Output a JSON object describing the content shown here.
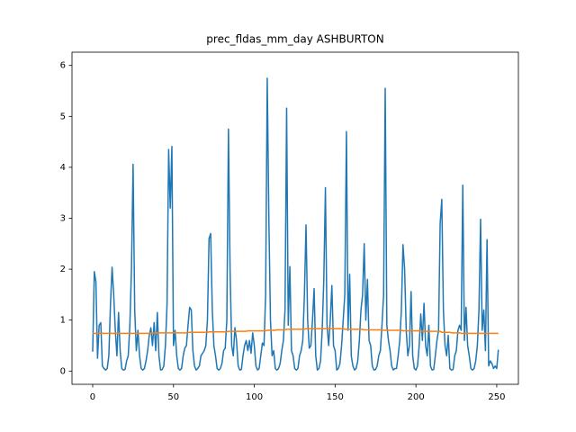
{
  "chart_data": {
    "type": "line",
    "title": "prec_fldas_mm_day ASHBURTON",
    "x": [
      0,
      1,
      2,
      3,
      4,
      5,
      6,
      7,
      8,
      9,
      10,
      11,
      12,
      13,
      14,
      15,
      16,
      17,
      18,
      19,
      20,
      21,
      22,
      23,
      24,
      25,
      26,
      27,
      28,
      29,
      30,
      31,
      32,
      33,
      34,
      35,
      36,
      37,
      38,
      39,
      40,
      41,
      42,
      43,
      44,
      45,
      46,
      47,
      48,
      49,
      50,
      51,
      52,
      53,
      54,
      55,
      56,
      57,
      58,
      59,
      60,
      61,
      62,
      63,
      64,
      65,
      66,
      67,
      68,
      69,
      70,
      71,
      72,
      73,
      74,
      75,
      76,
      77,
      78,
      79,
      80,
      81,
      82,
      83,
      84,
      85,
      86,
      87,
      88,
      89,
      90,
      91,
      92,
      93,
      94,
      95,
      96,
      97,
      98,
      99,
      100,
      101,
      102,
      103,
      104,
      105,
      106,
      107,
      108,
      109,
      110,
      111,
      112,
      113,
      114,
      115,
      116,
      117,
      118,
      119,
      120,
      121,
      122,
      123,
      124,
      125,
      126,
      127,
      128,
      129,
      130,
      131,
      132,
      133,
      134,
      135,
      136,
      137,
      138,
      139,
      140,
      141,
      142,
      143,
      144,
      145,
      146,
      147,
      148,
      149,
      150,
      151,
      152,
      153,
      154,
      155,
      156,
      157,
      158,
      159,
      160,
      161,
      162,
      163,
      164,
      165,
      166,
      167,
      168,
      169,
      170,
      171,
      172,
      173,
      174,
      175,
      176,
      177,
      178,
      179,
      180,
      181,
      182,
      183,
      184,
      185,
      186,
      187,
      188,
      189,
      190,
      191,
      192,
      193,
      194,
      195,
      196,
      197,
      198,
      199,
      200,
      201,
      202,
      203,
      204,
      205,
      206,
      207,
      208,
      209,
      210,
      211,
      212,
      213,
      214,
      215,
      216,
      217,
      218,
      219,
      220,
      221,
      222,
      223,
      224,
      225,
      226,
      227,
      228,
      229,
      230,
      231,
      232,
      233,
      234,
      235,
      236,
      237,
      238,
      239,
      240,
      241,
      242,
      243,
      244,
      245,
      246,
      247,
      248,
      249,
      250,
      251
    ],
    "series": [
      {
        "color": "#1f77b4",
        "values": [
          0.38,
          1.95,
          1.75,
          0.25,
          0.9,
          0.95,
          0.1,
          0.05,
          0.02,
          0.05,
          0.3,
          1.3,
          2.04,
          1.5,
          0.8,
          0.3,
          1.15,
          0.4,
          0.05,
          0.02,
          0.03,
          0.2,
          0.3,
          0.9,
          2.0,
          4.06,
          1.2,
          0.4,
          0.8,
          0.3,
          0.05,
          0.02,
          0.05,
          0.2,
          0.4,
          0.7,
          0.85,
          0.5,
          0.95,
          0.4,
          1.15,
          0.3,
          0.02,
          0.03,
          0.1,
          0.5,
          1.3,
          4.35,
          3.2,
          4.41,
          0.5,
          0.8,
          0.3,
          0.05,
          0.02,
          0.05,
          0.3,
          0.45,
          0.5,
          0.9,
          1.25,
          1.2,
          0.4,
          0.1,
          0.02,
          0.05,
          0.1,
          0.3,
          0.35,
          0.4,
          0.5,
          1.0,
          2.6,
          2.7,
          1.2,
          0.5,
          0.3,
          0.05,
          0.02,
          0.05,
          0.15,
          0.4,
          0.45,
          1.0,
          4.75,
          2.0,
          0.5,
          0.3,
          0.85,
          0.6,
          0.1,
          0.02,
          0.03,
          0.3,
          0.5,
          0.6,
          0.4,
          0.6,
          0.35,
          0.75,
          0.5,
          0.1,
          0.02,
          0.05,
          0.3,
          0.55,
          0.5,
          1.5,
          5.75,
          3.0,
          1.0,
          0.3,
          0.4,
          0.05,
          0.02,
          0.05,
          0.15,
          0.4,
          0.6,
          1.2,
          5.16,
          0.9,
          2.05,
          0.4,
          0.3,
          0.05,
          0.02,
          0.05,
          0.3,
          0.4,
          0.6,
          1.5,
          2.87,
          1.0,
          0.45,
          0.5,
          1.0,
          1.62,
          0.3,
          0.02,
          0.05,
          0.2,
          0.8,
          1.8,
          3.6,
          0.9,
          0.5,
          1.0,
          1.68,
          0.5,
          0.4,
          0.02,
          0.05,
          0.15,
          0.5,
          1.0,
          1.5,
          4.7,
          0.8,
          1.9,
          0.3,
          0.1,
          0.02,
          0.05,
          0.2,
          0.6,
          1.2,
          1.5,
          2.5,
          1.0,
          1.8,
          0.6,
          0.5,
          0.1,
          0.02,
          0.03,
          0.1,
          0.3,
          0.4,
          0.9,
          1.5,
          5.55,
          0.9,
          0.6,
          0.4,
          0.1,
          0.02,
          0.05,
          0.05,
          0.3,
          0.6,
          1.2,
          2.48,
          2.0,
          0.8,
          0.3,
          0.5,
          1.56,
          0.3,
          0.05,
          0.02,
          0.1,
          0.5,
          1.12,
          0.6,
          1.33,
          0.5,
          0.3,
          0.9,
          0.1,
          0.02,
          0.03,
          0.3,
          0.6,
          0.8,
          2.9,
          3.37,
          1.2,
          0.5,
          0.3,
          0.7,
          0.05,
          0.02,
          0.03,
          0.3,
          0.4,
          0.8,
          0.9,
          0.8,
          3.65,
          0.6,
          1.25,
          0.5,
          0.3,
          0.05,
          0.02,
          0.05,
          0.2,
          0.5,
          1.2,
          2.98,
          0.8,
          1.2,
          0.4,
          2.58,
          0.1,
          0.2,
          0.15,
          0.05,
          0.1,
          0.05,
          0.42
        ]
      },
      {
        "color": "#ff7f0e",
        "values": [
          0.74,
          0.74,
          0.74,
          0.74,
          0.74,
          0.74,
          0.74,
          0.74,
          0.74,
          0.74,
          0.74,
          0.74,
          0.74,
          0.74,
          0.74,
          0.74,
          0.74,
          0.74,
          0.74,
          0.74,
          0.74,
          0.74,
          0.74,
          0.74,
          0.74,
          0.74,
          0.74,
          0.74,
          0.74,
          0.74,
          0.74,
          0.74,
          0.74,
          0.74,
          0.74,
          0.74,
          0.75,
          0.75,
          0.75,
          0.75,
          0.75,
          0.75,
          0.75,
          0.75,
          0.75,
          0.75,
          0.75,
          0.75,
          0.75,
          0.75,
          0.75,
          0.75,
          0.75,
          0.75,
          0.75,
          0.75,
          0.75,
          0.75,
          0.75,
          0.75,
          0.76,
          0.76,
          0.76,
          0.76,
          0.76,
          0.76,
          0.76,
          0.76,
          0.76,
          0.76,
          0.76,
          0.76,
          0.77,
          0.77,
          0.77,
          0.77,
          0.77,
          0.77,
          0.77,
          0.77,
          0.77,
          0.77,
          0.77,
          0.77,
          0.78,
          0.78,
          0.78,
          0.78,
          0.78,
          0.78,
          0.78,
          0.78,
          0.78,
          0.78,
          0.78,
          0.78,
          0.79,
          0.79,
          0.79,
          0.79,
          0.79,
          0.79,
          0.79,
          0.79,
          0.79,
          0.79,
          0.79,
          0.79,
          0.8,
          0.8,
          0.8,
          0.8,
          0.8,
          0.8,
          0.81,
          0.81,
          0.81,
          0.81,
          0.81,
          0.81,
          0.82,
          0.82,
          0.82,
          0.82,
          0.82,
          0.82,
          0.82,
          0.82,
          0.82,
          0.82,
          0.82,
          0.82,
          0.83,
          0.83,
          0.83,
          0.83,
          0.83,
          0.83,
          0.83,
          0.83,
          0.83,
          0.83,
          0.83,
          0.83,
          0.83,
          0.83,
          0.83,
          0.83,
          0.83,
          0.83,
          0.83,
          0.83,
          0.83,
          0.83,
          0.83,
          0.83,
          0.82,
          0.82,
          0.82,
          0.82,
          0.82,
          0.82,
          0.82,
          0.82,
          0.82,
          0.82,
          0.82,
          0.82,
          0.81,
          0.81,
          0.81,
          0.81,
          0.81,
          0.81,
          0.81,
          0.81,
          0.81,
          0.81,
          0.81,
          0.81,
          0.8,
          0.8,
          0.8,
          0.8,
          0.8,
          0.8,
          0.8,
          0.8,
          0.8,
          0.8,
          0.8,
          0.8,
          0.79,
          0.79,
          0.79,
          0.79,
          0.79,
          0.79,
          0.79,
          0.79,
          0.79,
          0.79,
          0.79,
          0.79,
          0.78,
          0.78,
          0.78,
          0.78,
          0.78,
          0.78,
          0.78,
          0.78,
          0.78,
          0.78,
          0.78,
          0.78,
          0.76,
          0.76,
          0.76,
          0.76,
          0.76,
          0.76,
          0.75,
          0.75,
          0.75,
          0.75,
          0.75,
          0.75,
          0.74,
          0.74,
          0.74,
          0.74,
          0.74,
          0.74,
          0.74,
          0.74,
          0.74,
          0.74,
          0.74,
          0.74,
          0.74,
          0.74,
          0.74,
          0.74,
          0.74,
          0.74,
          0.74,
          0.74,
          0.74,
          0.74,
          0.74,
          0.74
        ]
      }
    ],
    "xlim": [
      -12.8,
      263.4
    ],
    "xticks": [
      0,
      50,
      100,
      150,
      200,
      250
    ],
    "ylim": [
      -0.26,
      6.26
    ],
    "yticks": [
      0,
      1,
      2,
      3,
      4,
      5,
      6
    ]
  }
}
